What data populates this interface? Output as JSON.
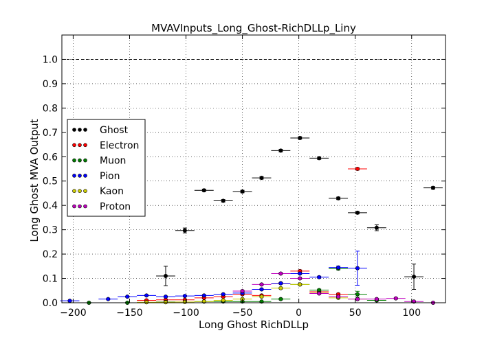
{
  "chart_data": {
    "type": "scatter",
    "title": "MVAVInputs_Long_Ghost-RichDLLp_Liny",
    "xlabel": "Long Ghost RichDLLp",
    "ylabel": "Long Ghost MVA Output",
    "xlim": [
      -210,
      130
    ],
    "ylim": [
      0.0,
      1.1
    ],
    "xticks": [
      -200,
      -150,
      -100,
      -50,
      0,
      50,
      100
    ],
    "xtick_labels": [
      "−200",
      "−150",
      "−100",
      "−50",
      "0",
      "50",
      "100"
    ],
    "yticks": [
      0.0,
      0.1,
      0.2,
      0.3,
      0.4,
      0.5,
      0.6,
      0.7,
      0.8,
      0.9,
      1.0
    ],
    "ytick_labels": [
      "0.0",
      "0.1",
      "0.2",
      "0.3",
      "0.4",
      "0.5",
      "0.6",
      "0.7",
      "0.8",
      "0.9",
      "1.0"
    ],
    "grid": true,
    "reference_line": 1.0,
    "legend_position": "center-left",
    "x_bin_halfwidth": 8.5,
    "series": [
      {
        "name": "Ghost",
        "color": "#000000",
        "x": [
          -118,
          -101,
          -84,
          -67,
          -50,
          -33,
          -16,
          1,
          18,
          35,
          52,
          69,
          102,
          119
        ],
        "y": [
          0.11,
          0.297,
          0.462,
          0.419,
          0.457,
          0.513,
          0.625,
          0.677,
          0.594,
          0.429,
          0.37,
          0.308,
          0.107,
          0.472
        ],
        "yerr": [
          0.04,
          0.01,
          0.005,
          0.005,
          0.005,
          0.005,
          0.005,
          0.005,
          0.005,
          0.005,
          0.005,
          0.012,
          0.052,
          0.005
        ]
      },
      {
        "name": "Electron",
        "color": "#ff0000",
        "x": [
          -135,
          -118,
          -101,
          -84,
          -67,
          -50,
          -33,
          -16,
          1,
          18,
          35,
          52,
          69
        ],
        "y": [
          0.01,
          0.012,
          0.012,
          0.02,
          0.025,
          0.035,
          0.03,
          0.08,
          0.13,
          0.045,
          0.035,
          0.55,
          0.01
        ],
        "yerr": [
          0.003,
          0.003,
          0.003,
          0.003,
          0.003,
          0.003,
          0.003,
          0.003,
          0.005,
          0.004,
          0.004,
          0.005,
          0.003
        ]
      },
      {
        "name": "Muon",
        "color": "#008000",
        "x": [
          -186,
          -152,
          -118,
          -84,
          -67,
          -50,
          -33,
          -16,
          1,
          18,
          35,
          52,
          69
        ],
        "y": [
          0.0,
          0.0,
          0.003,
          0.005,
          0.005,
          0.005,
          0.005,
          0.015,
          0.075,
          0.052,
          0.14,
          0.035,
          0.01
        ],
        "yerr": [
          0.002,
          0.002,
          0.002,
          0.002,
          0.002,
          0.002,
          0.002,
          0.003,
          0.004,
          0.004,
          0.005,
          0.012,
          0.003
        ]
      },
      {
        "name": "Pion",
        "color": "#0000ff",
        "x": [
          -203,
          -169,
          -152,
          -135,
          -118,
          -101,
          -84,
          -67,
          -50,
          -33,
          -16,
          1,
          18,
          35,
          52
        ],
        "y": [
          0.008,
          0.015,
          0.025,
          0.03,
          0.025,
          0.028,
          0.03,
          0.035,
          0.04,
          0.055,
          0.08,
          0.12,
          0.105,
          0.145,
          0.142
        ],
        "yerr": [
          0.002,
          0.002,
          0.002,
          0.002,
          0.002,
          0.002,
          0.002,
          0.002,
          0.002,
          0.003,
          0.003,
          0.004,
          0.004,
          0.006,
          0.07
        ]
      },
      {
        "name": "Kaon",
        "color": "#cccc00",
        "x": [
          -135,
          -118,
          -101,
          -84,
          -67,
          -50,
          -33,
          -16,
          1,
          18,
          35,
          52
        ],
        "y": [
          0.002,
          0.002,
          0.003,
          0.005,
          0.01,
          0.015,
          0.025,
          0.06,
          0.075,
          0.04,
          0.02,
          0.015
        ],
        "yerr": [
          0.002,
          0.002,
          0.002,
          0.002,
          0.002,
          0.002,
          0.003,
          0.003,
          0.004,
          0.003,
          0.003,
          0.003
        ]
      },
      {
        "name": "Proton",
        "color": "#bf00bf",
        "x": [
          -50,
          -33,
          -16,
          1,
          18,
          35,
          52,
          69,
          86,
          102,
          119
        ],
        "y": [
          0.048,
          0.075,
          0.12,
          0.1,
          0.038,
          0.025,
          0.015,
          0.015,
          0.018,
          0.005,
          0.0
        ],
        "yerr": [
          0.003,
          0.003,
          0.004,
          0.004,
          0.003,
          0.003,
          0.003,
          0.003,
          0.003,
          0.002,
          0.002
        ]
      }
    ]
  }
}
